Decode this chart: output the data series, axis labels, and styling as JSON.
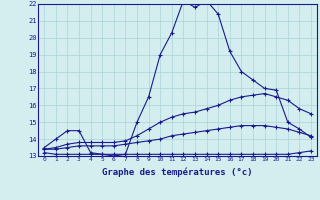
{
  "line1_x": [
    0,
    1,
    2,
    3,
    4,
    5,
    6,
    7,
    8,
    9,
    10,
    11,
    12,
    13,
    14,
    15,
    16,
    17,
    18,
    19,
    20,
    21,
    22,
    23
  ],
  "line1_y": [
    13.5,
    14.0,
    14.5,
    14.5,
    13.2,
    13.1,
    13.0,
    13.1,
    15.0,
    16.5,
    19.0,
    20.3,
    22.2,
    21.8,
    22.2,
    21.4,
    19.2,
    18.0,
    17.5,
    17.0,
    16.9,
    15.0,
    14.6,
    14.1
  ],
  "line2_x": [
    0,
    1,
    2,
    3,
    4,
    5,
    6,
    7,
    8,
    9,
    10,
    11,
    12,
    13,
    14,
    15,
    16,
    17,
    18,
    19,
    20,
    21,
    22,
    23
  ],
  "line2_y": [
    13.4,
    13.5,
    13.7,
    13.8,
    13.8,
    13.8,
    13.8,
    13.9,
    14.2,
    14.6,
    15.0,
    15.3,
    15.5,
    15.6,
    15.8,
    16.0,
    16.3,
    16.5,
    16.6,
    16.7,
    16.5,
    16.3,
    15.8,
    15.5
  ],
  "line3_x": [
    0,
    1,
    2,
    3,
    4,
    5,
    6,
    7,
    8,
    9,
    10,
    11,
    12,
    13,
    14,
    15,
    16,
    17,
    18,
    19,
    20,
    21,
    22,
    23
  ],
  "line3_y": [
    13.4,
    13.4,
    13.5,
    13.6,
    13.6,
    13.6,
    13.6,
    13.7,
    13.8,
    13.9,
    14.0,
    14.2,
    14.3,
    14.4,
    14.5,
    14.6,
    14.7,
    14.8,
    14.8,
    14.8,
    14.7,
    14.6,
    14.4,
    14.2
  ],
  "line4_x": [
    0,
    1,
    2,
    3,
    4,
    5,
    6,
    7,
    8,
    9,
    10,
    11,
    12,
    13,
    14,
    15,
    16,
    17,
    18,
    19,
    20,
    21,
    22,
    23
  ],
  "line4_y": [
    13.2,
    13.1,
    13.1,
    13.1,
    13.1,
    13.1,
    13.1,
    13.1,
    13.1,
    13.1,
    13.1,
    13.1,
    13.1,
    13.1,
    13.1,
    13.1,
    13.1,
    13.1,
    13.1,
    13.1,
    13.1,
    13.1,
    13.2,
    13.3
  ],
  "line_color": "#1a1a8c",
  "bg_color": "#d4eef0",
  "grid_color": "#a8d4d8",
  "xlabel": "Graphe des températures (°c)",
  "xlim": [
    -0.5,
    23.5
  ],
  "ylim": [
    13,
    22
  ],
  "xticks": [
    0,
    1,
    2,
    3,
    4,
    5,
    6,
    7,
    8,
    9,
    10,
    11,
    12,
    13,
    14,
    15,
    16,
    17,
    18,
    19,
    20,
    21,
    22,
    23
  ],
  "yticks": [
    13,
    14,
    15,
    16,
    17,
    18,
    19,
    20,
    21,
    22
  ]
}
